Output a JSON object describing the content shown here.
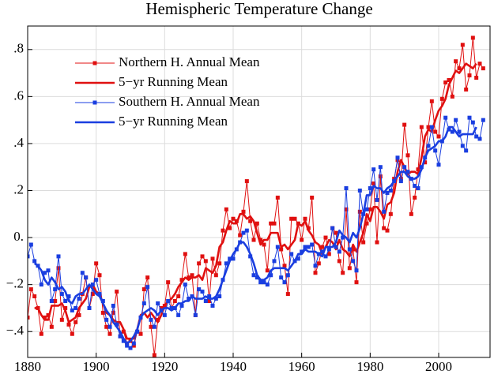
{
  "chart_data": {
    "type": "line",
    "title": "Hemispheric Temperature Change",
    "x": [
      1880,
      1881,
      1882,
      1883,
      1884,
      1885,
      1886,
      1887,
      1888,
      1889,
      1890,
      1891,
      1892,
      1893,
      1894,
      1895,
      1896,
      1897,
      1898,
      1899,
      1900,
      1901,
      1902,
      1903,
      1904,
      1905,
      1906,
      1907,
      1908,
      1909,
      1910,
      1911,
      1912,
      1913,
      1914,
      1915,
      1916,
      1917,
      1918,
      1919,
      1920,
      1921,
      1922,
      1923,
      1924,
      1925,
      1926,
      1927,
      1928,
      1929,
      1930,
      1931,
      1932,
      1933,
      1934,
      1935,
      1936,
      1937,
      1938,
      1939,
      1940,
      1941,
      1942,
      1943,
      1944,
      1945,
      1946,
      1947,
      1948,
      1949,
      1950,
      1951,
      1952,
      1953,
      1954,
      1955,
      1956,
      1957,
      1958,
      1959,
      1960,
      1961,
      1962,
      1963,
      1964,
      1965,
      1966,
      1967,
      1968,
      1969,
      1970,
      1971,
      1972,
      1973,
      1974,
      1975,
      1976,
      1977,
      1978,
      1979,
      1980,
      1981,
      1982,
      1983,
      1984,
      1985,
      1986,
      1987,
      1988,
      1989,
      1990,
      1991,
      1992,
      1993,
      1994,
      1995,
      1996,
      1997,
      1998,
      1999,
      2000,
      2001,
      2002,
      2003,
      2004,
      2005,
      2006,
      2007,
      2008,
      2009,
      2010,
      2011,
      2012,
      2013
    ],
    "series": [
      {
        "name": "Northern H. Annual Mean",
        "color": "#e01010",
        "marker": "square",
        "line_width": 1,
        "values": [
          -0.34,
          -0.22,
          -0.25,
          -0.3,
          -0.41,
          -0.34,
          -0.33,
          -0.38,
          -0.27,
          -0.13,
          -0.35,
          -0.3,
          -0.37,
          -0.41,
          -0.36,
          -0.33,
          -0.24,
          -0.17,
          -0.3,
          -0.24,
          -0.11,
          -0.16,
          -0.32,
          -0.38,
          -0.41,
          -0.32,
          -0.23,
          -0.42,
          -0.4,
          -0.45,
          -0.44,
          -0.46,
          -0.4,
          -0.41,
          -0.22,
          -0.17,
          -0.38,
          -0.5,
          -0.35,
          -0.3,
          -0.29,
          -0.19,
          -0.3,
          -0.27,
          -0.25,
          -0.18,
          -0.07,
          -0.17,
          -0.16,
          -0.33,
          -0.11,
          -0.08,
          -0.1,
          -0.27,
          -0.09,
          -0.16,
          -0.11,
          0.03,
          0.12,
          0.04,
          0.08,
          0.07,
          0.01,
          0.11,
          0.24,
          0.07,
          -0.01,
          0.06,
          -0.01,
          -0.03,
          -0.14,
          0.06,
          0.06,
          0.17,
          -0.05,
          -0.12,
          -0.24,
          0.08,
          0.08,
          0.06,
          -0.01,
          0.08,
          0.04,
          0.17,
          -0.15,
          -0.11,
          -0.04,
          0.0,
          -0.07,
          0.04,
          0.02,
          -0.1,
          -0.15,
          0.12,
          -0.13,
          -0.05,
          -0.19,
          0.11,
          -0.02,
          0.06,
          0.12,
          0.23,
          -0.02,
          0.26,
          0.04,
          0.03,
          0.1,
          0.25,
          0.33,
          0.25,
          0.48,
          0.35,
          0.1,
          0.17,
          0.29,
          0.47,
          0.32,
          0.47,
          0.58,
          0.45,
          0.43,
          0.59,
          0.66,
          0.67,
          0.6,
          0.75,
          0.72,
          0.82,
          0.63,
          0.69,
          0.85,
          0.68,
          0.74,
          0.72
        ]
      },
      {
        "name": "5−yr Running Mean",
        "color": "#e01010",
        "marker": "none",
        "line_width": 2.6,
        "values": [
          null,
          null,
          -0.3,
          -0.3,
          -0.33,
          -0.35,
          -0.35,
          -0.29,
          -0.29,
          -0.29,
          -0.28,
          -0.31,
          -0.36,
          -0.35,
          -0.34,
          -0.3,
          -0.28,
          -0.26,
          -0.21,
          -0.2,
          -0.23,
          -0.24,
          -0.28,
          -0.32,
          -0.33,
          -0.35,
          -0.36,
          -0.36,
          -0.39,
          -0.43,
          -0.43,
          -0.43,
          -0.39,
          -0.33,
          -0.32,
          -0.34,
          -0.32,
          -0.34,
          -0.36,
          -0.33,
          -0.29,
          -0.27,
          -0.26,
          -0.24,
          -0.21,
          -0.19,
          -0.17,
          -0.18,
          -0.17,
          -0.17,
          -0.16,
          -0.18,
          -0.13,
          -0.14,
          -0.15,
          -0.12,
          -0.04,
          -0.02,
          0.03,
          0.07,
          0.06,
          0.06,
          0.1,
          0.1,
          0.08,
          0.09,
          0.07,
          0.02,
          -0.03,
          -0.01,
          -0.01,
          0.02,
          0.02,
          0.02,
          -0.04,
          -0.03,
          -0.05,
          -0.03,
          -0.01,
          0.06,
          0.05,
          0.07,
          0.03,
          0.01,
          -0.02,
          -0.03,
          -0.07,
          -0.04,
          -0.01,
          -0.02,
          -0.05,
          -0.01,
          -0.05,
          -0.06,
          -0.08,
          -0.03,
          -0.06,
          -0.02,
          0.02,
          0.1,
          0.07,
          0.13,
          0.13,
          0.11,
          0.08,
          0.14,
          0.15,
          0.19,
          0.28,
          0.33,
          0.3,
          0.27,
          0.28,
          0.28,
          0.27,
          0.34,
          0.43,
          0.46,
          0.45,
          0.5,
          0.54,
          0.56,
          0.59,
          0.65,
          0.68,
          0.71,
          0.7,
          0.72,
          0.74,
          0.73,
          0.72,
          0.74,
          null,
          null
        ]
      },
      {
        "name": "Southern H. Annual Mean",
        "color": "#1a3ee0",
        "marker": "square",
        "line_width": 1,
        "values": [
          -0.08,
          -0.03,
          -0.1,
          -0.12,
          -0.2,
          -0.15,
          -0.14,
          -0.27,
          -0.22,
          -0.08,
          -0.24,
          -0.27,
          -0.25,
          -0.31,
          -0.3,
          -0.26,
          -0.15,
          -0.17,
          -0.3,
          -0.2,
          -0.18,
          -0.24,
          -0.27,
          -0.35,
          -0.38,
          -0.29,
          -0.37,
          -0.42,
          -0.44,
          -0.46,
          -0.47,
          -0.45,
          -0.4,
          -0.34,
          -0.28,
          -0.21,
          -0.35,
          -0.38,
          -0.28,
          -0.31,
          -0.33,
          -0.27,
          -0.3,
          -0.3,
          -0.33,
          -0.29,
          -0.2,
          -0.26,
          -0.25,
          -0.33,
          -0.22,
          -0.23,
          -0.27,
          -0.25,
          -0.29,
          -0.26,
          -0.25,
          -0.18,
          -0.11,
          -0.09,
          -0.09,
          -0.05,
          -0.02,
          0.02,
          0.03,
          -0.08,
          -0.16,
          -0.17,
          -0.19,
          -0.19,
          -0.2,
          -0.16,
          -0.1,
          -0.04,
          -0.17,
          -0.19,
          -0.16,
          -0.07,
          -0.1,
          -0.09,
          -0.06,
          -0.04,
          -0.04,
          -0.03,
          -0.12,
          -0.07,
          -0.06,
          -0.08,
          -0.05,
          0.04,
          -0.04,
          -0.06,
          0.0,
          0.21,
          -0.05,
          -0.1,
          -0.14,
          0.2,
          0.1,
          0.12,
          0.21,
          0.29,
          0.16,
          0.3,
          0.11,
          0.19,
          0.2,
          0.24,
          0.34,
          0.24,
          0.3,
          0.28,
          0.25,
          0.22,
          0.21,
          0.3,
          0.34,
          0.39,
          0.47,
          0.37,
          0.31,
          0.41,
          0.51,
          0.46,
          0.45,
          0.5,
          0.45,
          0.39,
          0.37,
          0.51,
          0.49,
          0.43,
          0.42,
          0.5
        ]
      },
      {
        "name": "5−yr Running Mean",
        "color": "#1a3ee0",
        "marker": "none",
        "line_width": 2.6,
        "values": [
          null,
          null,
          -0.11,
          -0.12,
          -0.14,
          -0.18,
          -0.2,
          -0.17,
          -0.19,
          -0.22,
          -0.21,
          -0.23,
          -0.27,
          -0.28,
          -0.25,
          -0.24,
          -0.24,
          -0.22,
          -0.2,
          -0.22,
          -0.24,
          -0.25,
          -0.28,
          -0.31,
          -0.33,
          -0.36,
          -0.38,
          -0.4,
          -0.43,
          -0.45,
          -0.44,
          -0.42,
          -0.39,
          -0.34,
          -0.32,
          -0.31,
          -0.3,
          -0.31,
          -0.33,
          -0.31,
          -0.3,
          -0.3,
          -0.31,
          -0.3,
          -0.28,
          -0.28,
          -0.27,
          -0.27,
          -0.25,
          -0.26,
          -0.26,
          -0.26,
          -0.25,
          -0.26,
          -0.26,
          -0.25,
          -0.22,
          -0.18,
          -0.14,
          -0.1,
          -0.07,
          -0.05,
          -0.02,
          -0.02,
          -0.04,
          -0.07,
          -0.11,
          -0.16,
          -0.18,
          -0.18,
          -0.17,
          -0.14,
          -0.13,
          -0.13,
          -0.13,
          -0.13,
          -0.14,
          -0.12,
          -0.1,
          -0.07,
          -0.07,
          -0.05,
          -0.06,
          -0.06,
          -0.06,
          -0.07,
          -0.08,
          -0.04,
          -0.04,
          -0.04,
          -0.02,
          0.03,
          0.01,
          0.0,
          -0.02,
          0.02,
          0.0,
          0.04,
          0.1,
          0.18,
          0.18,
          0.22,
          0.21,
          0.21,
          0.19,
          0.21,
          0.22,
          0.24,
          0.26,
          0.28,
          0.28,
          0.26,
          0.25,
          0.25,
          0.26,
          0.29,
          0.34,
          0.37,
          0.38,
          0.39,
          0.41,
          0.41,
          0.43,
          0.47,
          0.47,
          0.45,
          0.43,
          0.44,
          0.44,
          0.44,
          0.44,
          0.47,
          null,
          null
        ]
      }
    ],
    "xlim": [
      1880,
      2015
    ],
    "xticks": [
      1880,
      1900,
      1920,
      1940,
      1960,
      1980,
      2000
    ],
    "ylim": [
      -0.51,
      0.9
    ],
    "yticks": [
      {
        "value": -0.4,
        "label": "−.4"
      },
      {
        "value": -0.2,
        "label": "−.2"
      },
      {
        "value": 0,
        "label": "0."
      },
      {
        "value": 0.2,
        "label": ".2"
      },
      {
        "value": 0.4,
        "label": ".4"
      },
      {
        "value": 0.6,
        "label": ".6"
      },
      {
        "value": 0.8,
        "label": ".8"
      }
    ],
    "grid": true,
    "legend": "upper left"
  }
}
